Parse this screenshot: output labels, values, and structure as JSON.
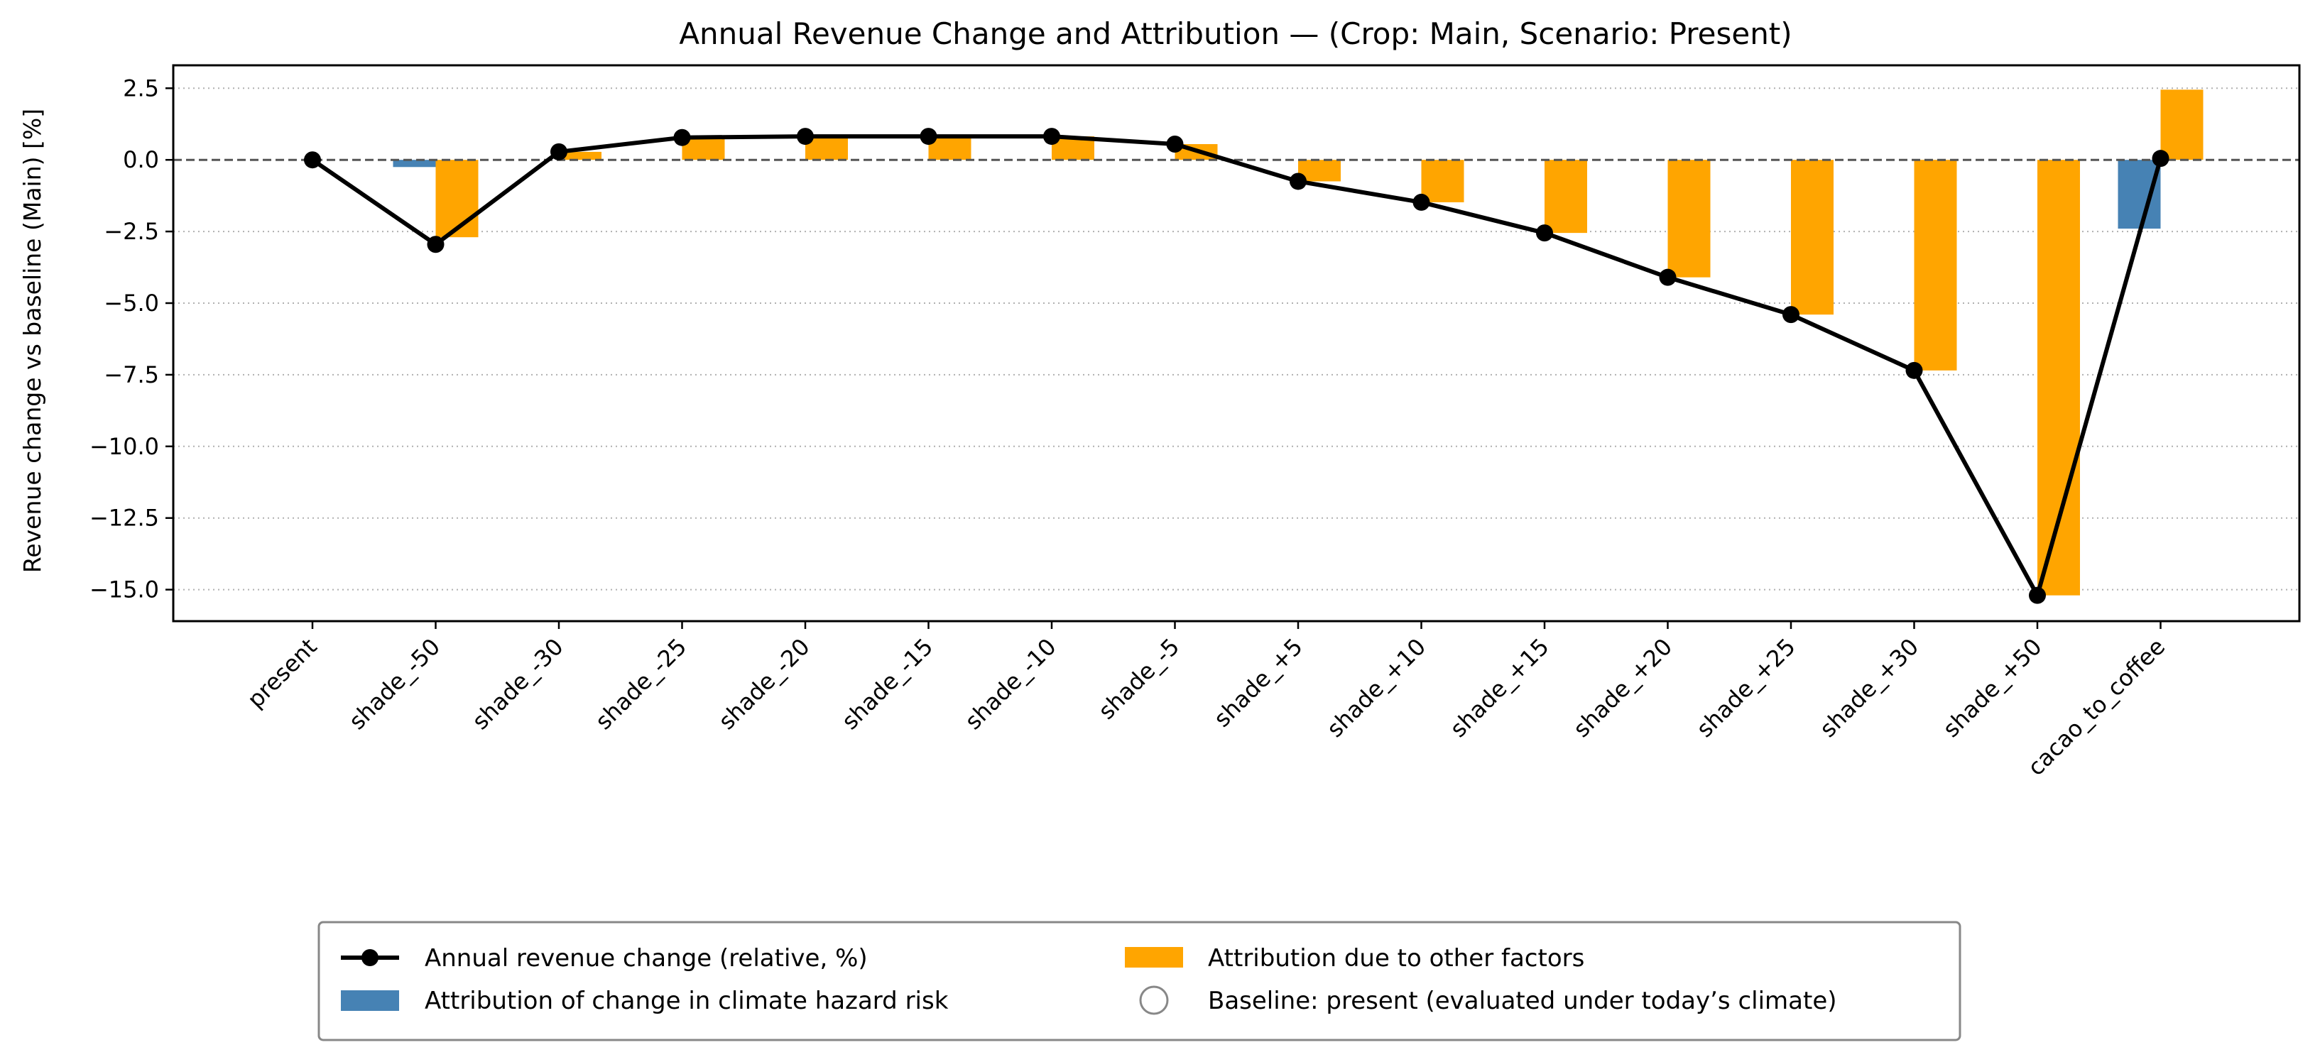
{
  "chart_data": {
    "type": "bar",
    "title": "Annual Revenue Change and Attribution — (Crop: Main, Scenario: Present)",
    "xlabel": "",
    "ylabel": "Revenue change vs baseline (Main) [%]",
    "ylim": [
      -16.1,
      3.3
    ],
    "yticks": [
      2.5,
      0.0,
      -2.5,
      -5.0,
      -7.5,
      -10.0,
      -12.5,
      -15.0
    ],
    "ytick_labels": [
      "2.5",
      "0.0",
      "−2.5",
      "−5.0",
      "−7.5",
      "−10.0",
      "−12.5",
      "−15.0"
    ],
    "grid": "horizontal, dotted",
    "categories": [
      "present",
      "shade_-50",
      "shade_-30",
      "shade_-25",
      "shade_-20",
      "shade_-15",
      "shade_-10",
      "shade_-5",
      "shade_+5",
      "shade_+10",
      "shade_+15",
      "shade_+20",
      "shade_+25",
      "shade_+30",
      "shade_+50",
      "cacao_to_coffee"
    ],
    "series": [
      {
        "name": "Annual revenue change (relative, %)",
        "kind": "line",
        "color": "#000000",
        "values": [
          0.0,
          -2.95,
          0.28,
          0.78,
          0.82,
          0.82,
          0.82,
          0.55,
          -0.75,
          -1.48,
          -2.55,
          -4.1,
          -5.4,
          -7.35,
          -15.2,
          0.05
        ]
      },
      {
        "name": "Attribution of change in climate hazard risk",
        "kind": "bar",
        "color": "#4682b4",
        "values": [
          0.0,
          -0.25,
          0.0,
          0.0,
          0.0,
          0.0,
          0.0,
          0.0,
          0.0,
          0.0,
          0.0,
          0.0,
          0.0,
          0.0,
          0.0,
          -2.4
        ]
      },
      {
        "name": "Attribution due to other factors",
        "kind": "bar",
        "color": "#ffa500",
        "values": [
          0.0,
          -2.7,
          0.28,
          0.78,
          0.82,
          0.82,
          0.82,
          0.55,
          -0.75,
          -1.48,
          -2.55,
          -4.1,
          -5.4,
          -7.35,
          -15.2,
          2.45
        ]
      }
    ],
    "baseline_marker": {
      "label": "Baseline: present (evaluated under today’s climate)"
    },
    "legend_position": "bottom-center, below plot",
    "legend": [
      "Annual revenue change (relative, %)",
      "Attribution due to other factors",
      "Attribution of change in climate hazard risk",
      "Baseline: present (evaluated under today’s climate)"
    ]
  }
}
